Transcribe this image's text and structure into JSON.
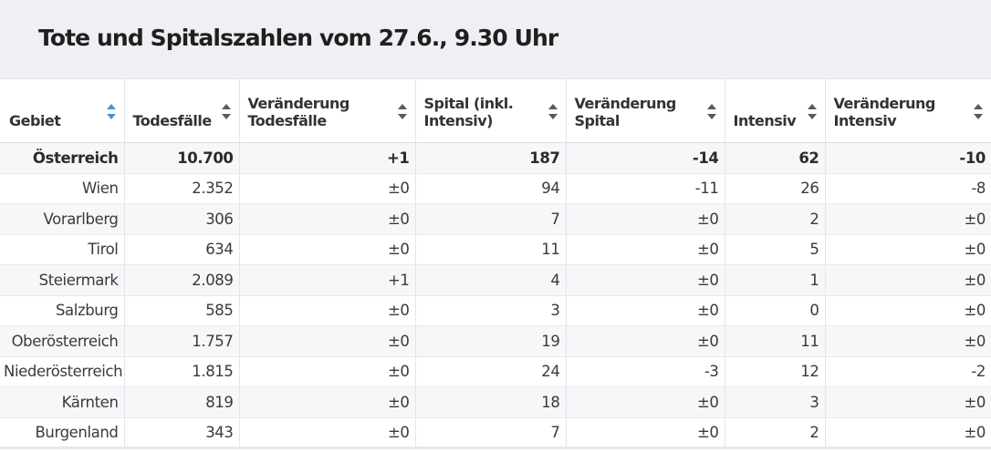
{
  "title": "Tote und Spitalszahlen vom 27.6., 9.30 Uhr",
  "columns": [
    {
      "label": "Gebiet",
      "sort_active": true
    },
    {
      "label": "Todesfälle",
      "sort_active": false
    },
    {
      "label": "Veränderung Todesfälle",
      "sort_active": false
    },
    {
      "label": "Spital (inkl. Intensiv)",
      "sort_active": false
    },
    {
      "label": "Veränderung Spital",
      "sort_active": false
    },
    {
      "label": "Intensiv",
      "sort_active": false
    },
    {
      "label": "Veränderung Intensiv",
      "sort_active": false
    }
  ],
  "rows": [
    {
      "region": "Österreich",
      "deaths": "10.700",
      "deaths_change": "+1",
      "hospital": "187",
      "hospital_change": "-14",
      "icu": "62",
      "icu_change": "-10",
      "bold": true
    },
    {
      "region": "Wien",
      "deaths": "2.352",
      "deaths_change": "±0",
      "hospital": "94",
      "hospital_change": "-11",
      "icu": "26",
      "icu_change": "-8"
    },
    {
      "region": "Vorarlberg",
      "deaths": "306",
      "deaths_change": "±0",
      "hospital": "7",
      "hospital_change": "±0",
      "icu": "2",
      "icu_change": "±0"
    },
    {
      "region": "Tirol",
      "deaths": "634",
      "deaths_change": "±0",
      "hospital": "11",
      "hospital_change": "±0",
      "icu": "5",
      "icu_change": "±0"
    },
    {
      "region": "Steiermark",
      "deaths": "2.089",
      "deaths_change": "+1",
      "hospital": "4",
      "hospital_change": "±0",
      "icu": "1",
      "icu_change": "±0"
    },
    {
      "region": "Salzburg",
      "deaths": "585",
      "deaths_change": "±0",
      "hospital": "3",
      "hospital_change": "±0",
      "icu": "0",
      "icu_change": "±0"
    },
    {
      "region": "Oberösterreich",
      "deaths": "1.757",
      "deaths_change": "±0",
      "hospital": "19",
      "hospital_change": "±0",
      "icu": "11",
      "icu_change": "±0"
    },
    {
      "region": "Niederösterreich",
      "deaths": "1.815",
      "deaths_change": "±0",
      "hospital": "24",
      "hospital_change": "-3",
      "icu": "12",
      "icu_change": "-2"
    },
    {
      "region": "Kärnten",
      "deaths": "819",
      "deaths_change": "±0",
      "hospital": "18",
      "hospital_change": "±0",
      "icu": "3",
      "icu_change": "±0"
    },
    {
      "region": "Burgenland",
      "deaths": "343",
      "deaths_change": "±0",
      "hospital": "7",
      "hospital_change": "±0",
      "icu": "2",
      "icu_change": "±0"
    }
  ],
  "colors": {
    "title_bar_bg": "#eef0f4",
    "sort_active": "#4a90d9",
    "sort_inactive": "#555a61",
    "row_alt_bg": "#f6f7f9"
  }
}
